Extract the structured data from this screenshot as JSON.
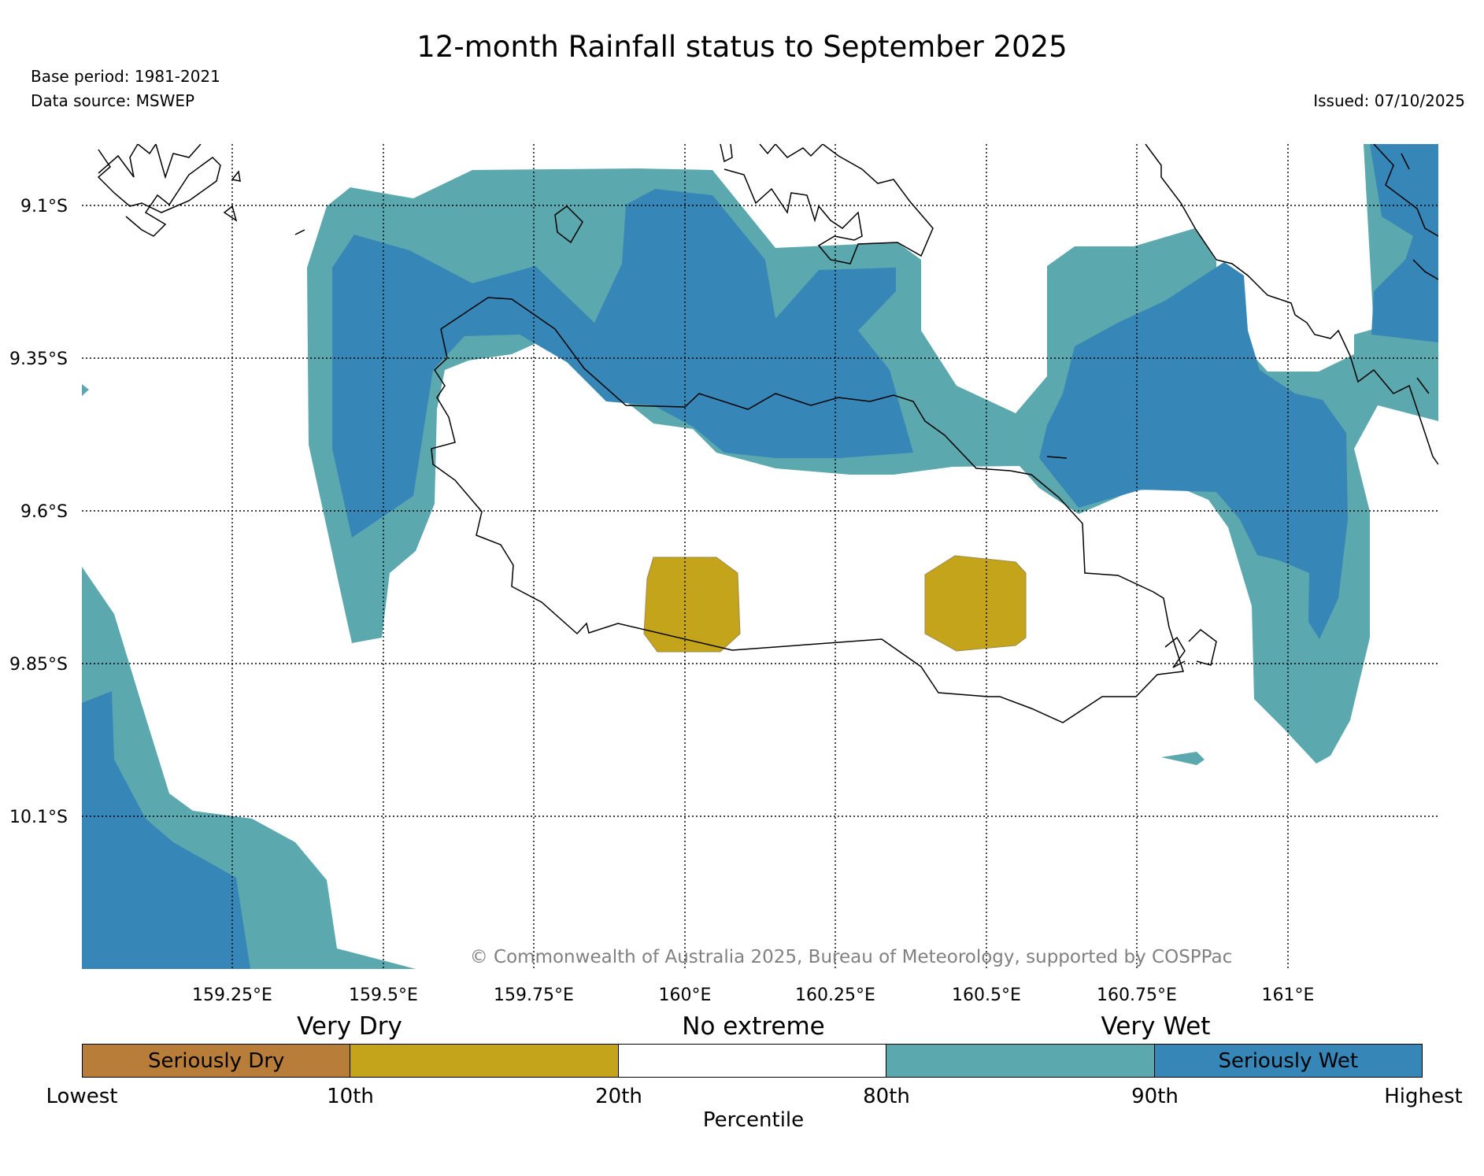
{
  "header": {
    "title": "12-month Rainfall status to September 2025",
    "base_period": "Base period: 1981-2021",
    "data_source": "Data source: MSWEP",
    "issued": "Issued: 07/10/2025"
  },
  "map": {
    "lat_labels": [
      "9.1°S",
      "9.35°S",
      "9.6°S",
      "9.85°S",
      "10.1°S"
    ],
    "lon_labels": [
      "159.25°E",
      "159.5°E",
      "159.75°E",
      "160°E",
      "160.25°E",
      "160.5°E",
      "160.75°E",
      "161°E"
    ],
    "copyright": "© Commonwealth of Australia 2025, Bureau of Meteorology, supported by COSPPac"
  },
  "legend": {
    "categories": [
      "Very Dry",
      "No extreme",
      "Very Wet"
    ],
    "segments": [
      {
        "label": "Seriously Dry",
        "color": "#b87d38"
      },
      {
        "label": "",
        "color": "#c4a41a"
      },
      {
        "label": "",
        "color": "#ffffff"
      },
      {
        "label": "",
        "color": "#5ba8ae"
      },
      {
        "label": "Seriously Wet",
        "color": "#3686b8"
      }
    ],
    "ticks": [
      "Lowest",
      "10th",
      "20th",
      "80th",
      "90th",
      "Highest"
    ],
    "axis_label": "Percentile"
  },
  "colors": {
    "very_wet": "#5ba8ae",
    "seriously_wet": "#3686b8",
    "very_dry": "#c4a41a",
    "seriously_dry": "#b87d38"
  }
}
